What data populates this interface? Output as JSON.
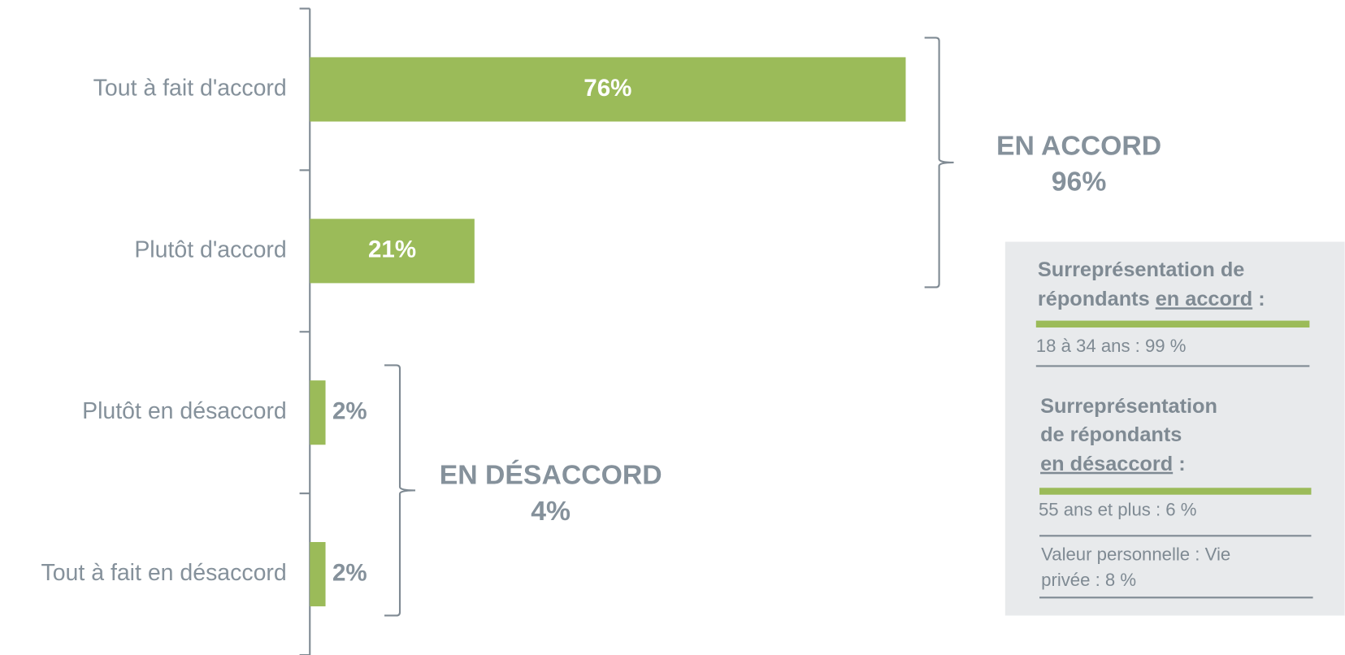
{
  "chart_data": {
    "type": "bar",
    "orientation": "horizontal",
    "categories": [
      "Tout à fait d'accord",
      "Plutôt d'accord",
      "Plutôt en désaccord",
      "Tout à fait en désaccord"
    ],
    "values": [
      76,
      21,
      2,
      2
    ],
    "value_labels": [
      "76%",
      "21%",
      "2%",
      "2%"
    ],
    "color": "#9bbb59",
    "groups": [
      {
        "label": "EN ACCORD",
        "value_label": "96%"
      },
      {
        "label": "EN DÉSACCORD",
        "value_label": "4%"
      }
    ]
  },
  "side_panel": {
    "sections": [
      {
        "title_lines": [
          "Surreprésentation de",
          "répondants"
        ],
        "underlined": "en accord",
        "suffix": ":",
        "items": [
          [
            "18 à 34 ans : 99 %"
          ]
        ]
      },
      {
        "title_lines": [
          "Surreprésentation",
          "de répondants"
        ],
        "underlined": "en désaccord",
        "suffix": ":",
        "items": [
          [
            "55 ans et plus : 6 %"
          ],
          [
            "Valeur personnelle : Vie",
            "privée : 8 %"
          ]
        ]
      }
    ]
  }
}
